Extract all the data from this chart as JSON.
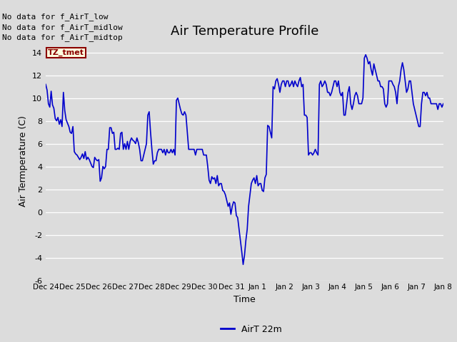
{
  "title": "Air Temperature Profile",
  "xlabel": "Time",
  "ylabel": "Air Termperature (C)",
  "ylim": [
    -6,
    15
  ],
  "yticks": [
    -6,
    -4,
    -2,
    0,
    2,
    4,
    6,
    8,
    10,
    12,
    14
  ],
  "line_color": "#0000cc",
  "line_width": 1.2,
  "bg_color": "#dcdcdc",
  "plot_bg_color": "#dcdcdc",
  "legend_label": "AirT 22m",
  "no_data_texts": [
    "No data for f_AirT_low",
    "No data for f_AirT_midlow",
    "No data for f_AirT_midtop"
  ],
  "tz_label": "TZ_tmet",
  "x_tick_labels": [
    "Dec 24",
    "Dec 25",
    "Dec 26",
    "Dec 27",
    "Dec 28",
    "Dec 29",
    "Dec 30",
    "Dec 31",
    "Jan 1",
    "Jan 2",
    "Jan 3",
    "Jan 4",
    "Jan 5",
    "Jan 6",
    "Jan 7",
    "Jan 8"
  ],
  "title_fontsize": 13,
  "axis_label_fontsize": 9,
  "tick_fontsize": 8,
  "no_data_fontsize": 8,
  "legend_fontsize": 9,
  "time_series": [
    11.2,
    10.7,
    9.5,
    9.2,
    10.6,
    9.4,
    9.1,
    8.2,
    8.0,
    8.3,
    7.7,
    8.1,
    7.5,
    10.5,
    8.9,
    8.1,
    7.8,
    7.5,
    7.0,
    6.9,
    7.5,
    5.3,
    5.1,
    5.0,
    4.8,
    4.6,
    4.8,
    5.1,
    4.7,
    5.3,
    4.6,
    4.8,
    4.6,
    4.3,
    4.0,
    3.9,
    4.8,
    4.6,
    4.5,
    4.6,
    2.7,
    3.0,
    4.0,
    3.8,
    4.0,
    5.5,
    5.5,
    7.4,
    7.4,
    6.9,
    7.0,
    5.5,
    5.5,
    5.6,
    5.5,
    6.9,
    7.0,
    5.5,
    6.0,
    5.5,
    6.2,
    5.5,
    6.2,
    6.5,
    6.3,
    6.2,
    6.0,
    6.5,
    6.1,
    5.5,
    4.5,
    4.5,
    5.0,
    5.5,
    6.0,
    8.5,
    8.8,
    7.0,
    5.5,
    4.2,
    4.5,
    4.5,
    5.2,
    5.5,
    5.5,
    5.5,
    5.2,
    5.5,
    5.0,
    5.5,
    5.2,
    5.2,
    5.5,
    5.2,
    5.5,
    5.0,
    9.8,
    10.0,
    9.5,
    9.0,
    8.6,
    8.5,
    8.8,
    8.5,
    7.0,
    5.5,
    5.5,
    5.5,
    5.5,
    5.5,
    5.0,
    5.5,
    5.5,
    5.5,
    5.5,
    5.5,
    5.0,
    5.0,
    5.0,
    4.0,
    2.8,
    2.5,
    3.1,
    2.9,
    3.0,
    2.5,
    3.2,
    2.3,
    2.5,
    2.5,
    1.9,
    1.8,
    1.5,
    1.0,
    0.5,
    0.8,
    -0.2,
    0.5,
    0.9,
    0.8,
    -0.3,
    -0.5,
    -1.5,
    -2.5,
    -3.5,
    -4.6,
    -3.8,
    -2.5,
    -1.5,
    0.5,
    1.5,
    2.5,
    2.8,
    3.0,
    2.5,
    3.2,
    2.3,
    2.5,
    2.5,
    1.9,
    1.8,
    3.0,
    3.3,
    7.6,
    7.5,
    7.0,
    6.5,
    11.0,
    10.8,
    11.5,
    11.7,
    11.2,
    10.5,
    11.2,
    11.5,
    11.5,
    11.0,
    11.5,
    11.5,
    11.0,
    11.2,
    11.5,
    11.0,
    11.5,
    11.2,
    11.0,
    11.5,
    11.8,
    11.0,
    11.2,
    8.5,
    8.5,
    8.3,
    5.0,
    5.2,
    5.2,
    5.0,
    5.2,
    5.5,
    5.2,
    5.0,
    11.2,
    11.5,
    11.0,
    11.2,
    11.5,
    11.2,
    10.5,
    10.5,
    10.2,
    10.5,
    11.0,
    11.5,
    11.5,
    11.0,
    11.5,
    10.5,
    10.2,
    10.5,
    8.5,
    8.5,
    9.5,
    10.5,
    11.0,
    9.5,
    9.0,
    9.5,
    10.2,
    10.5,
    10.2,
    9.5,
    9.5,
    9.5,
    10.0,
    13.5,
    13.8,
    13.5,
    13.0,
    13.2,
    12.5,
    12.0,
    13.0,
    12.5,
    12.0,
    11.5,
    11.5,
    11.0,
    11.0,
    10.8,
    9.5,
    9.2,
    9.5,
    11.5,
    11.5,
    11.5,
    11.2,
    11.0,
    10.5,
    9.5,
    11.0,
    11.5,
    12.5,
    13.1,
    12.5,
    11.5,
    10.5,
    10.8,
    11.5,
    11.5,
    10.5,
    9.5,
    9.0,
    8.5,
    8.0,
    7.5,
    7.5,
    9.5,
    10.5,
    10.5,
    10.2,
    10.5,
    10.0,
    10.0,
    9.5,
    9.5,
    9.5,
    9.5,
    9.5,
    9.0,
    9.5,
    9.5,
    9.2,
    9.5
  ]
}
